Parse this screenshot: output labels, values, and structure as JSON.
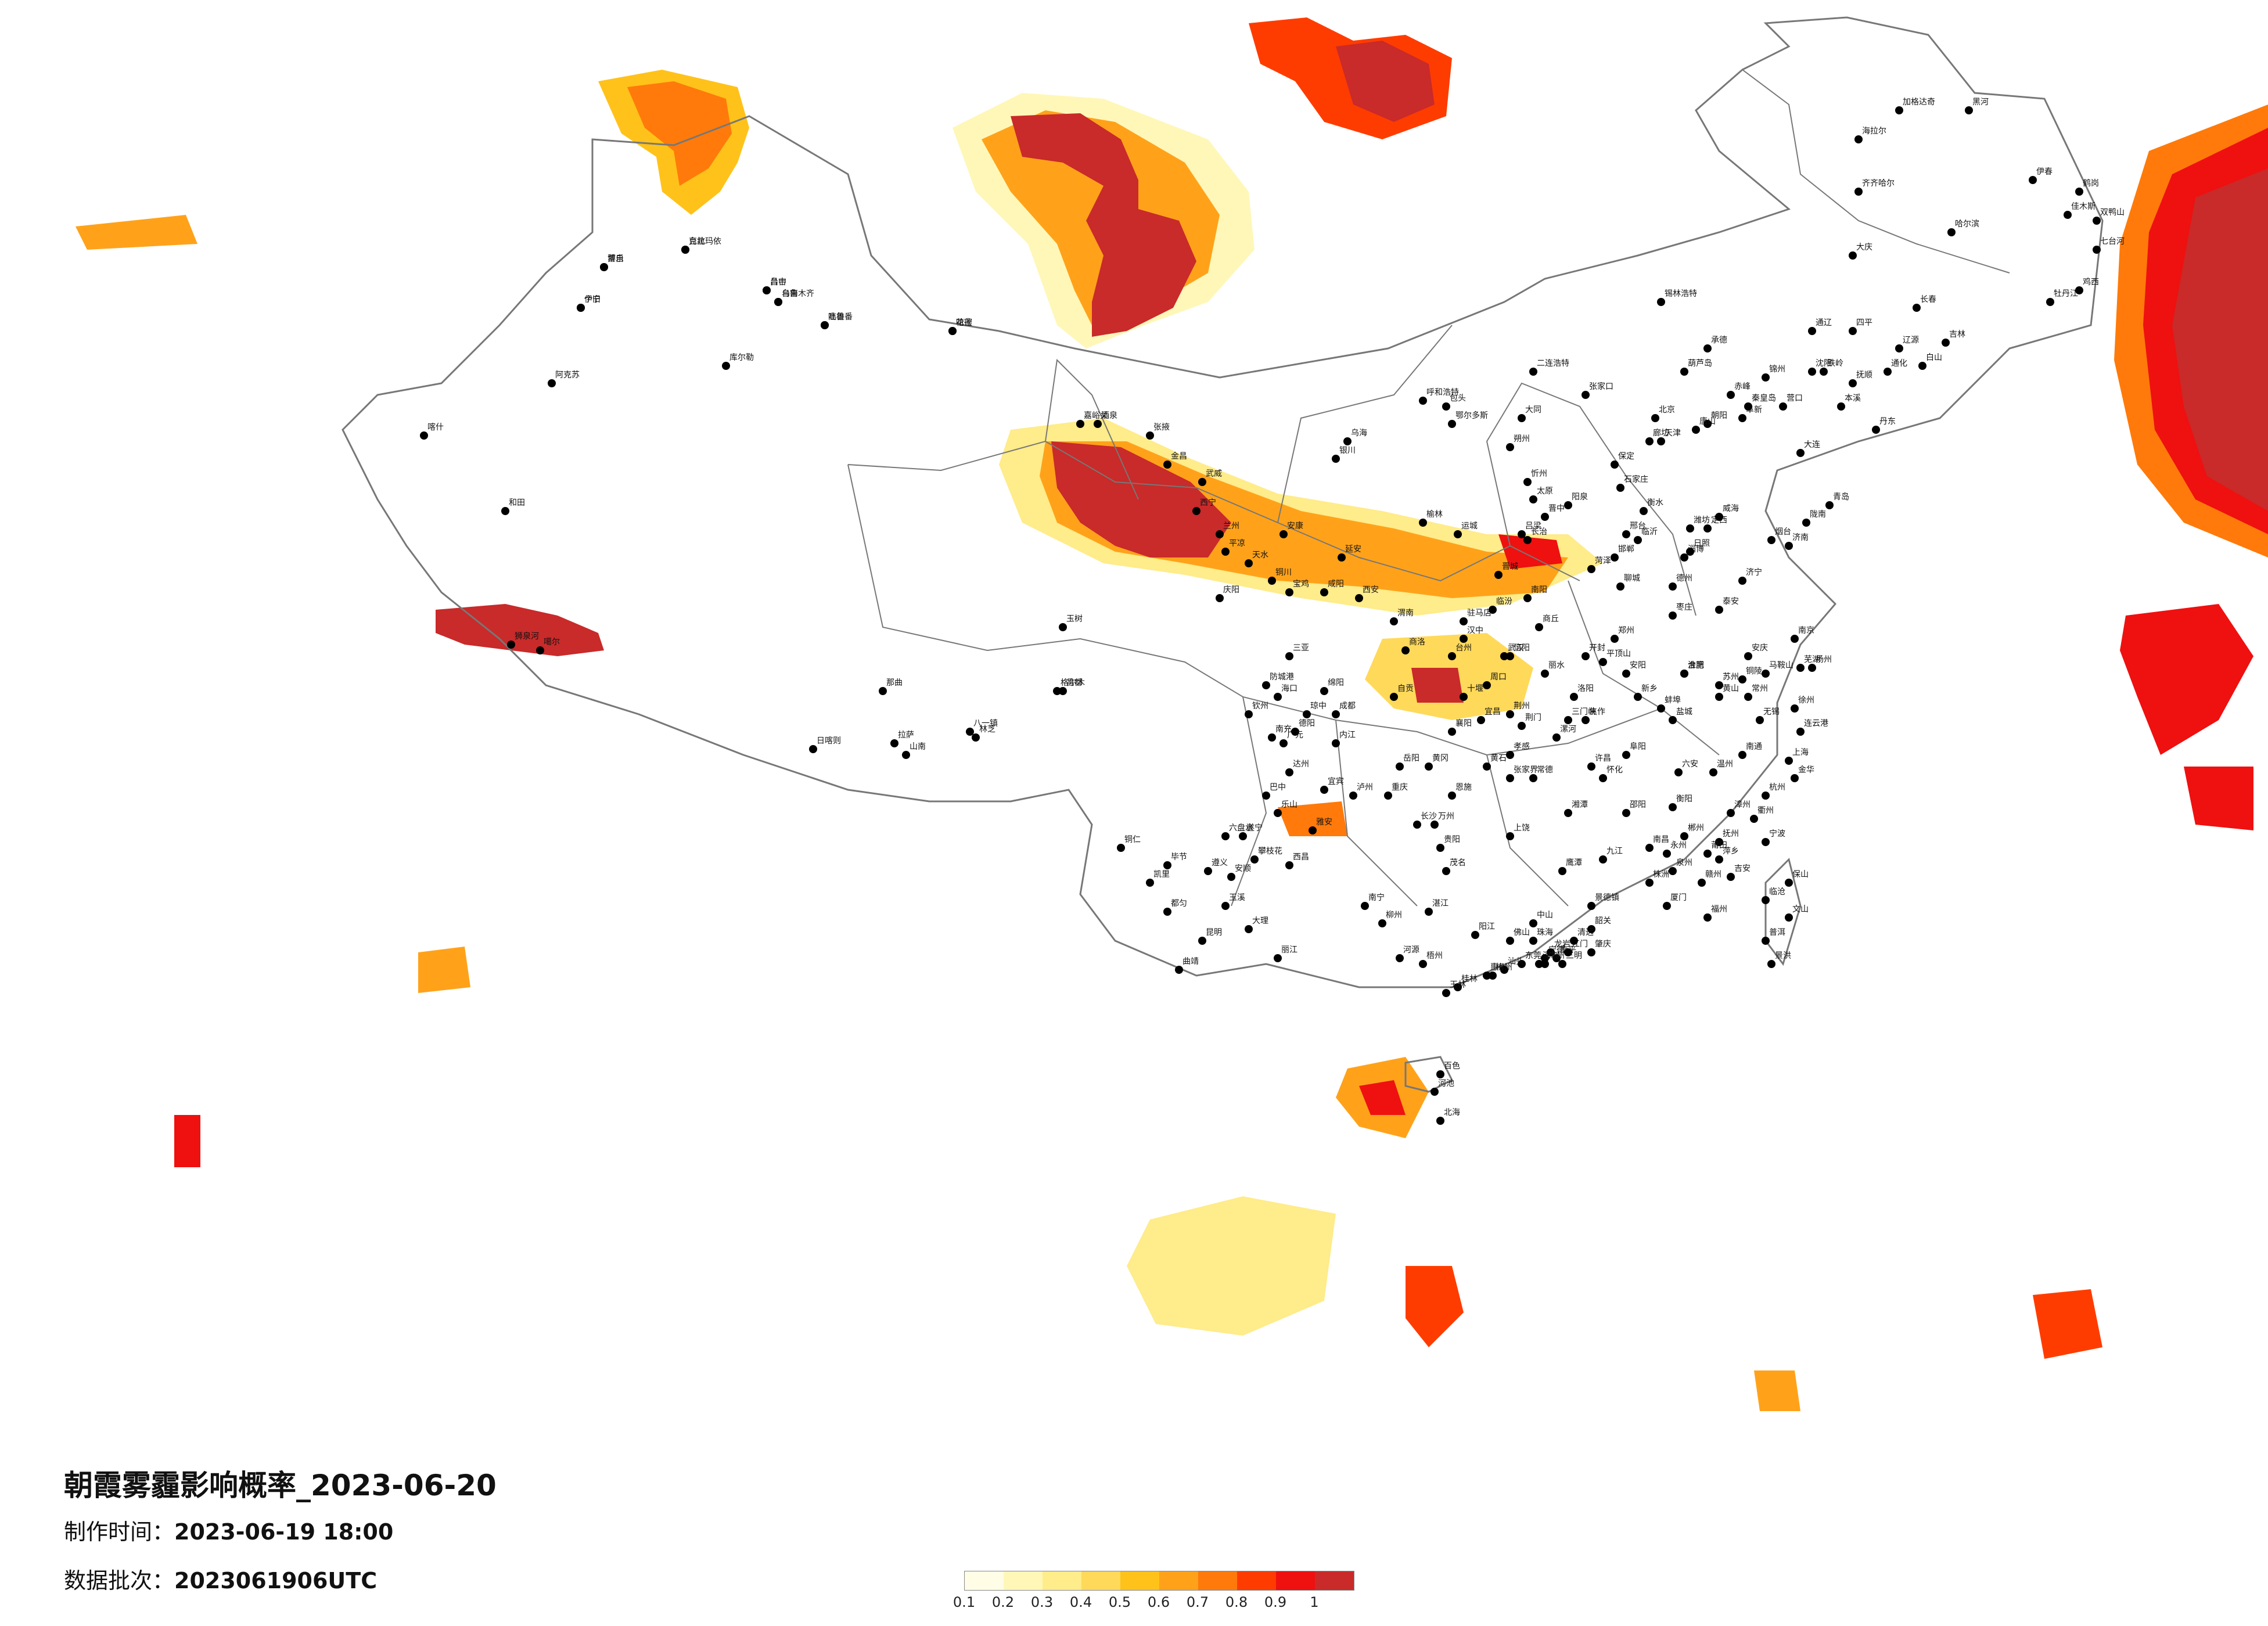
{
  "title": "朝霞雾霾影响概率_2023-06-20",
  "produce_time_label": "制作时间：",
  "produce_time": "2023-06-19 18:00",
  "batch_label": "数据批次：",
  "batch": "2023061906UTC",
  "legend": {
    "ticks": [
      "0.1",
      "0.2",
      "0.3",
      "0.4",
      "0.5",
      "0.6",
      "0.7",
      "0.8",
      "0.9",
      "1"
    ],
    "colors": [
      "#fffde6",
      "#fff7b8",
      "#ffec8a",
      "#ffd95a",
      "#ffc21a",
      "#ffa21a",
      "#ff7a0a",
      "#ff3c00",
      "#ef1010",
      "#c92a2a"
    ]
  },
  "cities": [
    "伊宁",
    "博乐",
    "克拉玛依",
    "昌吉",
    "乌鲁木齐",
    "吐鲁番",
    "哈密",
    "库尔勒",
    "阿克苏",
    "喀什",
    "和田",
    "噶尔",
    "狮泉河",
    "那曲",
    "拉萨",
    "日喀则",
    "林芝",
    "八一镇",
    "山南",
    "昌都",
    "玉树",
    "格尔木",
    "嘉峪关",
    "酒泉",
    "张掖",
    "金昌",
    "武威",
    "西宁",
    "兰州",
    "银川",
    "乌海",
    "呼和浩特",
    "包头",
    "鄂尔多斯",
    "二连浩特",
    "锡林浩特",
    "赤峰",
    "通辽",
    "海拉尔",
    "齐齐哈尔",
    "加格达奇",
    "黑河",
    "伊春",
    "鹤岗",
    "佳木斯",
    "双鸭山",
    "七台河",
    "鸡西",
    "牡丹江",
    "哈尔滨",
    "大庆",
    "长春",
    "吉林",
    "四平",
    "辽源",
    "通化",
    "白山",
    "沈阳",
    "铁岭",
    "抚顺",
    "本溪",
    "丹东",
    "大连",
    "营口",
    "锦州",
    "阜新",
    "朝阳",
    "葫芦岛",
    "承德",
    "秦皇岛",
    "唐山",
    "北京",
    "天津",
    "廊坊",
    "保定",
    "石家庄",
    "衡水",
    "邢台",
    "邯郸",
    "张家口",
    "大同",
    "朔州",
    "忻州",
    "太原",
    "阳泉",
    "晋中",
    "吕梁",
    "长治",
    "晋城",
    "临汾",
    "运城",
    "榆林",
    "延安",
    "铜川",
    "宝鸡",
    "咸阳",
    "西安",
    "渭南",
    "商洛",
    "汉中",
    "安康",
    "天水",
    "平凉",
    "庆阳",
    "定西",
    "陇南",
    "济南",
    "青岛",
    "烟台",
    "威海",
    "潍坊",
    "淄博",
    "泰安",
    "济宁",
    "临沂",
    "日照",
    "德州",
    "聊城",
    "菏泽",
    "枣庄",
    "郑州",
    "开封",
    "洛阳",
    "平顶山",
    "安阳",
    "新乡",
    "焦作",
    "许昌",
    "漯河",
    "南阳",
    "信阳",
    "周口",
    "驻马店",
    "商丘",
    "三门峡",
    "合肥",
    "蚌埠",
    "淮南",
    "阜阳",
    "六安",
    "安庆",
    "芜湖",
    "马鞍山",
    "铜陵",
    "黄山",
    "南京",
    "苏州",
    "无锡",
    "常州",
    "徐州",
    "连云港",
    "盐城",
    "扬州",
    "南通",
    "上海",
    "杭州",
    "宁波",
    "温州",
    "金华",
    "衢州",
    "丽水",
    "台州",
    "武汉",
    "十堰",
    "襄阳",
    "宜昌",
    "荆州",
    "荆门",
    "孝感",
    "黄冈",
    "黄石",
    "恩施",
    "长沙",
    "岳阳",
    "常德",
    "张家界",
    "怀化",
    "邵阳",
    "衡阳",
    "郴州",
    "永州",
    "株洲",
    "湘潭",
    "南昌",
    "九江",
    "景德镇",
    "上饶",
    "鹰潭",
    "抚州",
    "吉安",
    "赣州",
    "萍乡",
    "福州",
    "厦门",
    "泉州",
    "莆田",
    "漳州",
    "龙岩",
    "三明",
    "南平",
    "宁德",
    "广州",
    "深圳",
    "东莞",
    "佛山",
    "中山",
    "珠海",
    "江门",
    "肇庆",
    "韶关",
    "清远",
    "惠州",
    "汕头",
    "梅州",
    "河源",
    "湛江",
    "茂名",
    "阳江",
    "南宁",
    "柳州",
    "桂林",
    "梧州",
    "玉林",
    "百色",
    "河池",
    "北海",
    "钦州",
    "防城港",
    "海口",
    "三亚",
    "琼中",
    "成都",
    "绵阳",
    "德阳",
    "广元",
    "南充",
    "达州",
    "巴中",
    "遂宁",
    "内江",
    "自贡",
    "宜宾",
    "泸州",
    "乐山",
    "雅安",
    "西昌",
    "攀枝花",
    "重庆",
    "万州",
    "贵阳",
    "遵义",
    "六盘水",
    "安顺",
    "毕节",
    "铜仁",
    "凯里",
    "都匀",
    "昆明",
    "曲靖",
    "玉溪",
    "大理",
    "丽江",
    "保山",
    "临沧",
    "普洱",
    "景洪",
    "文山",
    "个旧",
    "蒙自",
    "台北",
    "台中",
    "台南",
    "高雄",
    "花莲"
  ],
  "scalebar_values": []
}
